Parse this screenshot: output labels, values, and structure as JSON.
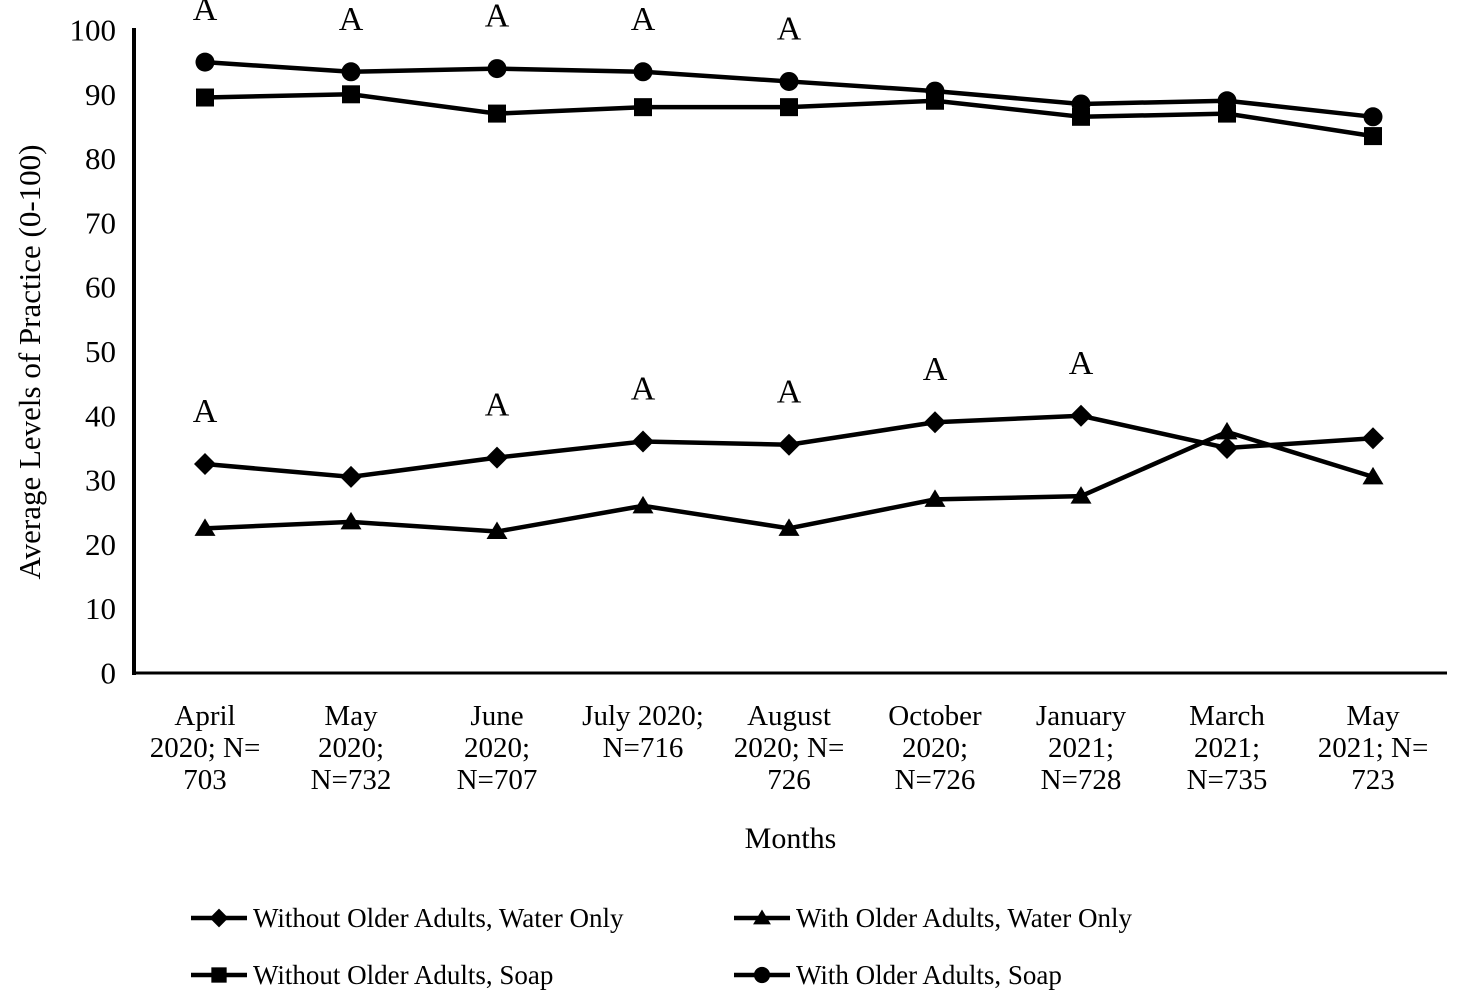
{
  "chart_data": {
    "type": "line",
    "title": "",
    "xlabel": "Months",
    "ylabel": "Average Levels of Practice (0-100)",
    "ylim": [
      0,
      100
    ],
    "yticks": [
      0,
      10,
      20,
      30,
      40,
      50,
      60,
      70,
      80,
      90,
      100
    ],
    "grid": false,
    "legend_position": "bottom",
    "ink_color": "#000000",
    "background": "#ffffff",
    "annotation_label": "A",
    "categories": [
      "April\n2020; N=\n703",
      "May\n2020;\nN=732",
      "June\n2020;\nN=707",
      "July 2020;\nN=716",
      "August\n2020; N=\n726",
      "October\n2020;\nN=726",
      "January\n2021;\nN=728",
      "March\n2021;\nN=735",
      "May\n2021; N=\n723"
    ],
    "series": [
      {
        "name": "Without Older Adults, Water Only",
        "marker": "diamond",
        "values": [
          32.5,
          30.5,
          33.5,
          36,
          35.5,
          39,
          40,
          35,
          36.5
        ],
        "annotated_indices": [
          0,
          2,
          3,
          4,
          5,
          6
        ]
      },
      {
        "name": "With Older Adults, Water Only",
        "marker": "triangle",
        "values": [
          22.5,
          23.5,
          22,
          26,
          22.5,
          27,
          27.5,
          37.5,
          30.5
        ],
        "annotated_indices": []
      },
      {
        "name": "Without Older Adults, Soap",
        "marker": "square",
        "values": [
          89.5,
          90,
          87,
          88,
          88,
          89,
          86.5,
          87,
          83.5
        ],
        "annotated_indices": []
      },
      {
        "name": "With Older Adults, Soap",
        "marker": "circle",
        "values": [
          95,
          93.5,
          94,
          93.5,
          92,
          90.5,
          88.5,
          89,
          86.5
        ],
        "annotated_indices": [
          0,
          1,
          2,
          3,
          4
        ]
      }
    ]
  }
}
